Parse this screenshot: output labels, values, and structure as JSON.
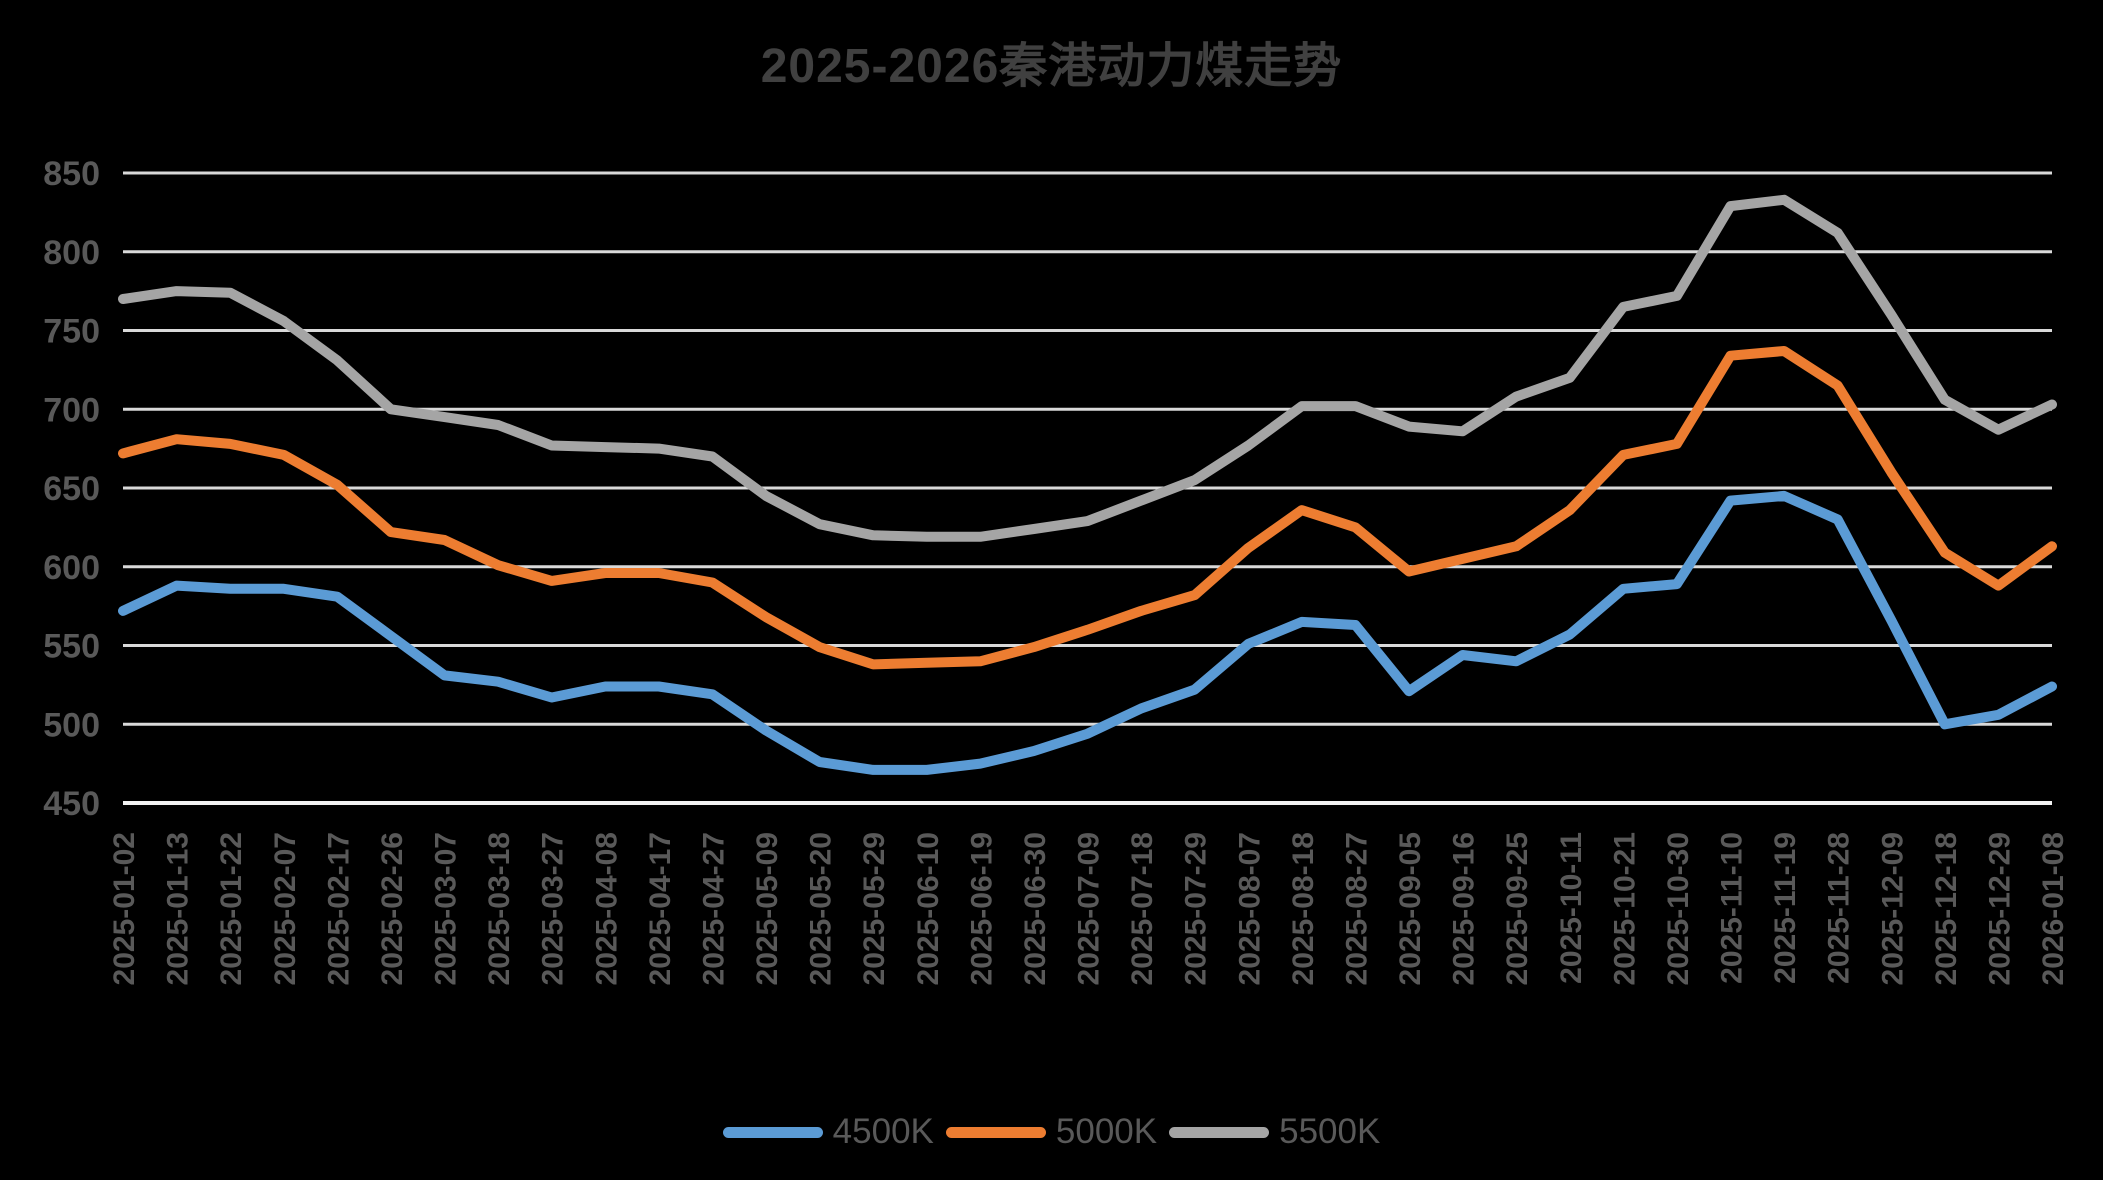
{
  "title": "2025-2026秦港动力煤走势",
  "colors": {
    "background": "#000000",
    "title": "#404040",
    "axis_label": "#595959",
    "gridline": "#D9D9D9",
    "axis_line": "#F2F2F2",
    "legend_label": "#595959"
  },
  "chart_data": {
    "type": "line",
    "title": "2025-2026秦港动力煤走势",
    "x_labels": [
      "2025-01-02",
      "2025-01-13",
      "2025-01-22",
      "2025-02-07",
      "2025-02-17",
      "2025-02-26",
      "2025-03-07",
      "2025-03-18",
      "2025-03-27",
      "2025-04-08",
      "2025-04-17",
      "2025-04-27",
      "2025-05-09",
      "2025-05-20",
      "2025-05-29",
      "2025-06-10",
      "2025-06-19",
      "2025-06-30",
      "2025-07-09",
      "2025-07-18",
      "2025-07-29",
      "2025-08-07",
      "2025-08-18",
      "2025-08-27",
      "2025-09-05",
      "2025-09-16",
      "2025-09-25",
      "2025-10-11",
      "2025-10-21",
      "2025-10-30",
      "2025-11-10",
      "2025-11-19",
      "2025-11-28",
      "2025-12-09",
      "2025-12-18",
      "2025-12-29",
      "2026-01-08"
    ],
    "series": [
      {
        "name": "4500K",
        "color": "#5B9BD5",
        "values": [
          572,
          588,
          586,
          586,
          581,
          556,
          531,
          527,
          517,
          524,
          524,
          519,
          496,
          476,
          471,
          471,
          475,
          483,
          494,
          510,
          522,
          551,
          565,
          563,
          521,
          544,
          540,
          557,
          586,
          589,
          642,
          645,
          630,
          566,
          500,
          506,
          524
        ]
      },
      {
        "name": "5000K",
        "color": "#ED7D31",
        "values": [
          672,
          681,
          678,
          671,
          652,
          622,
          617,
          601,
          591,
          596,
          596,
          590,
          568,
          549,
          538,
          539,
          540,
          549,
          560,
          572,
          582,
          612,
          636,
          625,
          597,
          605,
          613,
          636,
          671,
          678,
          734,
          737,
          715,
          660,
          609,
          588,
          613
        ]
      },
      {
        "name": "5500K",
        "color": "#A5A5A5",
        "values": [
          770,
          775,
          774,
          756,
          731,
          700,
          695,
          690,
          677,
          676,
          675,
          670,
          645,
          627,
          620,
          619,
          619,
          624,
          629,
          642,
          655,
          677,
          702,
          702,
          689,
          686,
          708,
          720,
          765,
          772,
          829,
          833,
          812,
          760,
          706,
          687,
          703
        ]
      }
    ],
    "ylim": [
      450,
      850
    ],
    "y_ticks": [
      450,
      500,
      550,
      600,
      650,
      700,
      750,
      800,
      850
    ],
    "grid": true,
    "legend_position": "bottom",
    "x_label_rotation": -90
  }
}
